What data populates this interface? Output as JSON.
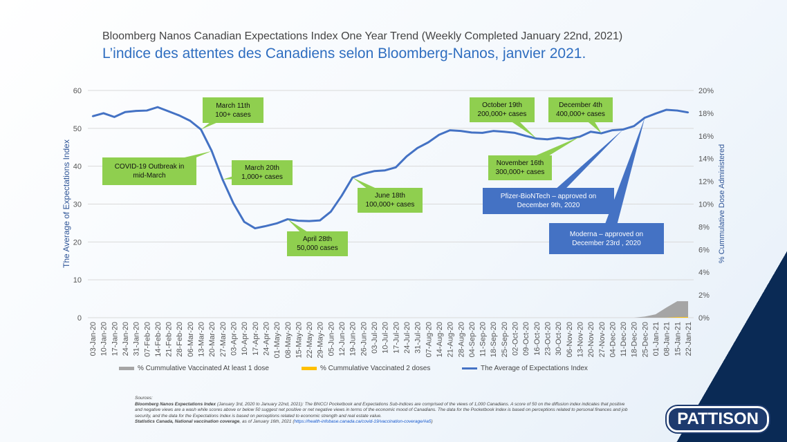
{
  "title": "Bloomberg Nanos Canadian Expectations Index One Year Trend (Weekly Completed January 22nd, 2021)",
  "subtitle": "L’indice des attentes des Canadiens selon Bloomberg-Nanos, janvier 2021.",
  "chart_data": {
    "type": "line",
    "xlabel": "",
    "ylabel": "The Average of Expectations Index",
    "y2label": "% Cummulative Dose Administered",
    "ylim": [
      0,
      60
    ],
    "y2lim": [
      0,
      20
    ],
    "yticks": [
      "0",
      "10",
      "20",
      "30",
      "40",
      "50",
      "60"
    ],
    "y2ticks": [
      "0%",
      "2%",
      "4%",
      "6%",
      "8%",
      "10%",
      "12%",
      "14%",
      "16%",
      "18%",
      "20%"
    ],
    "categories": [
      "03-Jan-20",
      "10-Jan-20",
      "17-Jan-20",
      "24-Jan-20",
      "31-Jan-20",
      "07-Feb-20",
      "14-Feb-20",
      "21-Feb-20",
      "28-Feb-20",
      "06-Mar-20",
      "13-Mar-20",
      "20-Mar-20",
      "27-Mar-20",
      "03-Apr-20",
      "10-Apr-20",
      "17-Apr-20",
      "24-Apr-20",
      "01-May-20",
      "08-May-20",
      "15-May-20",
      "22-May-20",
      "29-May-20",
      "05-Jun-20",
      "12-Jun-20",
      "19-Jun-20",
      "26-Jun-20",
      "03-Jul-20",
      "10-Jul-20",
      "17-Jul-20",
      "24-Jul-20",
      "31-Jul-20",
      "07-Aug-20",
      "14-Aug-20",
      "21-Aug-20",
      "28-Aug-20",
      "04-Sep-20",
      "11-Sep-20",
      "18-Sep-20",
      "25-Sep-20",
      "02-Oct-20",
      "09-Oct-20",
      "16-Oct-20",
      "23-Oct-20",
      "30-Oct-20",
      "06-Nov-20",
      "13-Nov-20",
      "20-Nov-20",
      "27-Nov-20",
      "04-Dec-20",
      "11-Dec-20",
      "18-Dec-20",
      "25-Dec-20",
      "01-Jan-21",
      "08-Jan-21",
      "15-Jan-21",
      "22-Jan-21"
    ],
    "series": [
      {
        "name": "% Cummulative Vaccinated At least 1 dose",
        "type": "area",
        "axis": "right",
        "color": "#a5a5a5",
        "values": [
          0,
          0,
          0,
          0,
          0,
          0,
          0,
          0,
          0,
          0,
          0,
          0,
          0,
          0,
          0,
          0,
          0,
          0,
          0,
          0,
          0,
          0,
          0,
          0,
          0,
          0,
          0,
          0,
          0,
          0,
          0,
          0,
          0,
          0,
          0,
          0,
          0,
          0,
          0,
          0,
          0,
          0,
          0,
          0,
          0,
          0,
          0,
          0,
          0,
          0,
          0,
          0.1,
          0.3,
          0.9,
          1.45,
          1.45
        ]
      },
      {
        "name": "% Cummulative Vaccinated 2 doses",
        "type": "area",
        "axis": "right",
        "color": "#ffc000",
        "values": [
          0,
          0,
          0,
          0,
          0,
          0,
          0,
          0,
          0,
          0,
          0,
          0,
          0,
          0,
          0,
          0,
          0,
          0,
          0,
          0,
          0,
          0,
          0,
          0,
          0,
          0,
          0,
          0,
          0,
          0,
          0,
          0,
          0,
          0,
          0,
          0,
          0,
          0,
          0,
          0,
          0,
          0,
          0,
          0,
          0,
          0,
          0,
          0,
          0,
          0,
          0,
          0,
          0,
          0.01,
          0.05,
          0.06
        ]
      },
      {
        "name": "The Average of Expectations Index",
        "type": "line",
        "axis": "left",
        "color": "#4472c4",
        "values": [
          53.2,
          54.0,
          53.0,
          54.3,
          54.6,
          54.7,
          55.6,
          54.5,
          53.4,
          52.0,
          49.7,
          44.0,
          36.5,
          30.2,
          25.3,
          23.6,
          24.2,
          24.9,
          26.0,
          25.6,
          25.5,
          25.7,
          28.0,
          32.2,
          37.0,
          38.0,
          38.7,
          38.9,
          39.7,
          42.6,
          44.8,
          46.3,
          48.3,
          49.5,
          49.3,
          48.9,
          48.8,
          49.3,
          49.1,
          48.8,
          48.0,
          47.3,
          47.1,
          47.5,
          47.2,
          47.8,
          49.1,
          48.7,
          49.5,
          49.7,
          50.6,
          52.8,
          53.9,
          54.9,
          54.7,
          54.2
        ]
      }
    ],
    "annotations": [
      {
        "text": [
          "March 11th",
          "100+ cases"
        ],
        "at": "13-Mar-20",
        "style": "green"
      },
      {
        "text": [
          "COVID-19 Outbreak in",
          "mid-March"
        ],
        "at": "20-Mar-20",
        "style": "green"
      },
      {
        "text": [
          "March 20th",
          "1,000+ cases"
        ],
        "at": "27-Mar-20",
        "style": "green"
      },
      {
        "text": [
          "April 28th",
          "50,000 cases"
        ],
        "at": "08-May-20",
        "style": "green"
      },
      {
        "text": [
          "June 18th",
          "100,000+ cases"
        ],
        "at": "19-Jun-20",
        "style": "green"
      },
      {
        "text": [
          "October 19th",
          "200,000+ cases"
        ],
        "at": "16-Oct-20",
        "style": "green"
      },
      {
        "text": [
          "November 16th",
          "300,000+ cases"
        ],
        "at": "13-Nov-20",
        "style": "green"
      },
      {
        "text": [
          "December 4th",
          "400,000+ cases"
        ],
        "at": "27-Nov-20",
        "style": "green"
      },
      {
        "text": [
          "Pfizer-BioNTech  – approved on",
          "December 9th, 2020"
        ],
        "at": "11-Dec-20",
        "style": "blue"
      },
      {
        "text": [
          "Moderna – approved on",
          "December 23rd , 2020"
        ],
        "at": "25-Dec-20",
        "style": "blue"
      }
    ],
    "legend": "bottom"
  },
  "sources": {
    "heading": "Sources:",
    "line1_bold": "Bloomberg Nanos Expectations Index",
    "line1": " (January 3rd, 2020 to January 22nd, 2021): The BNCCI Pocketbook and Expectations Sub-Indices are comprised of the views of 1,000 Canadians. A score of 50 on the diffusion index indicates that positive and negative views are a wash while scores above or below 50 suggest net positive or net negative views in terms of the economic mood of Canadians. The data for the Pocketbook Index is based on perceptions related to personal finances and job security, and the data for the Expectations Index is based on perceptions related to economic strength and real estate value.",
    "line2_bold": "Statistics Canada, National vaccination coverage",
    "line2": ", as of January 16th, 2021 (",
    "link": "https://health-infobase.canada.ca/covid-19/vaccination-coverage/#a5",
    "line2_end": ")"
  },
  "logo": "PATTISON"
}
